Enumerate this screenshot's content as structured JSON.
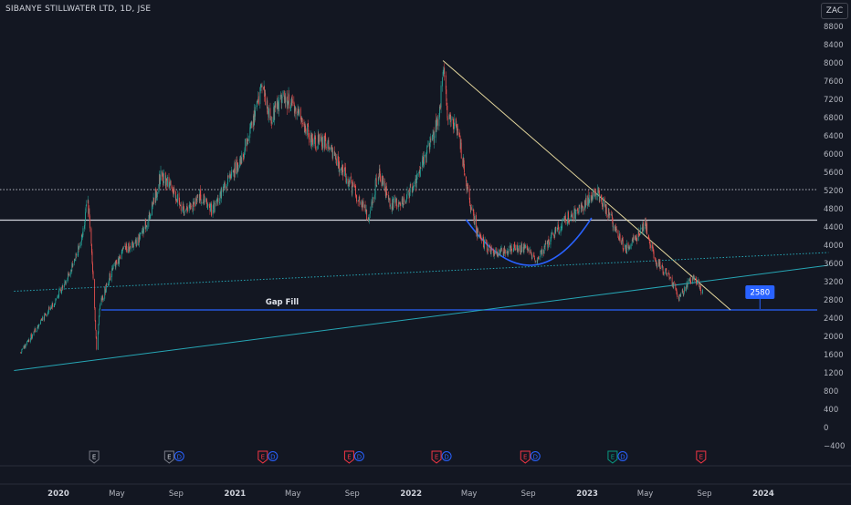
{
  "title": "SIBANYE STILLWATER LTD, 1D, JSE",
  "currency": "ZAC",
  "chart_data": {
    "type": "candlestick",
    "title": "SIBANYE STILLWATER LTD, 1D, JSE",
    "currency": "ZAC",
    "y_ticks": [
      8800,
      8400,
      8000,
      7600,
      7200,
      6800,
      6400,
      6000,
      5600,
      5200,
      4800,
      4400,
      4000,
      3600,
      3200,
      2800,
      2400,
      2000,
      1600,
      1200,
      800,
      400,
      0,
      -400
    ],
    "ylim": [
      -600,
      9000
    ],
    "x_ticks": [
      {
        "label": "2020",
        "date": "2020-01-01",
        "bold": true
      },
      {
        "label": "May",
        "date": "2020-05-01",
        "bold": false
      },
      {
        "label": "Sep",
        "date": "2020-09-01",
        "bold": false
      },
      {
        "label": "2021",
        "date": "2021-01-01",
        "bold": true
      },
      {
        "label": "May",
        "date": "2021-05-01",
        "bold": false
      },
      {
        "label": "Sep",
        "date": "2021-09-01",
        "bold": false
      },
      {
        "label": "2022",
        "date": "2022-01-01",
        "bold": true
      },
      {
        "label": "May",
        "date": "2022-05-01",
        "bold": false
      },
      {
        "label": "Sep",
        "date": "2022-09-01",
        "bold": false
      },
      {
        "label": "2023",
        "date": "2023-01-01",
        "bold": true
      },
      {
        "label": "May",
        "date": "2023-05-01",
        "bold": false
      },
      {
        "label": "Sep",
        "date": "2023-09-01",
        "bold": false
      },
      {
        "label": "2024",
        "date": "2024-01-01",
        "bold": true
      }
    ],
    "price_path": [
      [
        "2019-10-15",
        1650
      ],
      [
        "2019-11-15",
        2150
      ],
      [
        "2019-12-20",
        2700
      ],
      [
        "2020-01-25",
        3400
      ],
      [
        "2020-02-20",
        4200
      ],
      [
        "2020-03-01",
        5100
      ],
      [
        "2020-03-12",
        3500
      ],
      [
        "2020-03-20",
        1700
      ],
      [
        "2020-03-27",
        2700
      ],
      [
        "2020-04-20",
        3400
      ],
      [
        "2020-05-15",
        3900
      ],
      [
        "2020-06-15",
        4100
      ],
      [
        "2020-07-10",
        4700
      ],
      [
        "2020-07-30",
        5500
      ],
      [
        "2020-08-20",
        5300
      ],
      [
        "2020-09-20",
        4700
      ],
      [
        "2020-10-20",
        5100
      ],
      [
        "2020-11-15",
        4750
      ],
      [
        "2020-12-15",
        5400
      ],
      [
        "2021-01-10",
        5800
      ],
      [
        "2021-02-05",
        6600
      ],
      [
        "2021-02-25",
        7500
      ],
      [
        "2021-03-15",
        6800
      ],
      [
        "2021-04-10",
        7300
      ],
      [
        "2021-05-10",
        6900
      ],
      [
        "2021-06-10",
        6300
      ],
      [
        "2021-07-10",
        6200
      ],
      [
        "2021-08-10",
        5700
      ],
      [
        "2021-09-10",
        5100
      ],
      [
        "2021-10-05",
        4600
      ],
      [
        "2021-10-25",
        5600
      ],
      [
        "2021-11-20",
        4900
      ],
      [
        "2021-12-20",
        5000
      ],
      [
        "2022-01-10",
        5400
      ],
      [
        "2022-02-10",
        6200
      ],
      [
        "2022-03-01",
        6900
      ],
      [
        "2022-03-08",
        7900
      ],
      [
        "2022-03-18",
        6800
      ],
      [
        "2022-04-08",
        6500
      ],
      [
        "2022-04-28",
        5200
      ],
      [
        "2022-05-20",
        4200
      ],
      [
        "2022-06-20",
        3800
      ],
      [
        "2022-07-20",
        3900
      ],
      [
        "2022-08-20",
        3950
      ],
      [
        "2022-09-20",
        3700
      ],
      [
        "2022-10-20",
        4200
      ],
      [
        "2022-11-20",
        4600
      ],
      [
        "2022-12-20",
        4800
      ],
      [
        "2023-01-20",
        5200
      ],
      [
        "2023-02-20",
        4600
      ],
      [
        "2023-03-20",
        3900
      ],
      [
        "2023-04-15",
        4200
      ],
      [
        "2023-05-01",
        4500
      ],
      [
        "2023-05-20",
        3700
      ],
      [
        "2023-06-20",
        3300
      ],
      [
        "2023-07-10",
        2850
      ],
      [
        "2023-07-25",
        3100
      ],
      [
        "2023-08-10",
        3350
      ],
      [
        "2023-08-28",
        2950
      ]
    ],
    "annotations": {
      "horizontal_lines": [
        {
          "name": "resistance-line",
          "value": 4550,
          "color": "#d1d4dc",
          "style": "solid"
        },
        {
          "name": "dotted-resistance-line",
          "value": 5220,
          "color": "#b2b5be",
          "style": "dotted"
        },
        {
          "name": "gap-fill-line",
          "value": 2580,
          "color": "#2962ff",
          "style": "solid",
          "label": "Gap Fill",
          "start": "2020-03-30"
        }
      ],
      "trend_lines": [
        {
          "name": "descending-trendline",
          "from": [
            "2022-03-08",
            8050
          ],
          "to": [
            "2023-10-25",
            2580
          ],
          "color": "#e3d69c"
        },
        {
          "name": "ascending-support-trendline",
          "from": [
            "2019-10-01",
            1250
          ],
          "to": [
            "2024-05-15",
            3560
          ],
          "color": "#26a6b5"
        },
        {
          "name": "dotted-trendline",
          "from": [
            "2019-10-01",
            2990
          ],
          "to": [
            "2024-05-15",
            3840
          ],
          "color": "#26a6b5"
        }
      ],
      "cup_curve": {
        "from": [
          "2022-04-25",
          4560
        ],
        "bottom": [
          "2022-09-05",
          3560
        ],
        "to": [
          "2023-01-10",
          4600
        ],
        "color": "#2962ff"
      },
      "price_label": {
        "text": "2580",
        "value": 2580,
        "date": "2023-12-25",
        "color": "#2962ff"
      }
    },
    "events": [
      {
        "date": "2020-03-15",
        "badges": [
          "E"
        ],
        "colors": [
          "#787b86"
        ]
      },
      {
        "date": "2020-08-28",
        "badges": [
          "E",
          "D"
        ],
        "colors": [
          "#787b86",
          "#2962ff"
        ]
      },
      {
        "date": "2021-03-10",
        "badges": [
          "E",
          "D"
        ],
        "colors": [
          "#f23645",
          "#2962ff"
        ]
      },
      {
        "date": "2021-09-05",
        "badges": [
          "E",
          "D"
        ],
        "colors": [
          "#f23645",
          "#2962ff"
        ]
      },
      {
        "date": "2022-03-05",
        "badges": [
          "E",
          "D"
        ],
        "colors": [
          "#f23645",
          "#2962ff"
        ]
      },
      {
        "date": "2022-09-05",
        "badges": [
          "E",
          "D"
        ],
        "colors": [
          "#f23645",
          "#2962ff"
        ]
      },
      {
        "date": "2023-03-05",
        "badges": [
          "E",
          "D"
        ],
        "colors": [
          "#089981",
          "#2962ff"
        ]
      },
      {
        "date": "2023-08-25",
        "badges": [
          "E"
        ],
        "colors": [
          "#f23645"
        ]
      }
    ],
    "colors": {
      "background": "#131722",
      "up": "#26a69a",
      "down": "#ef5350",
      "text": "#b2b5be"
    },
    "grid": false
  }
}
